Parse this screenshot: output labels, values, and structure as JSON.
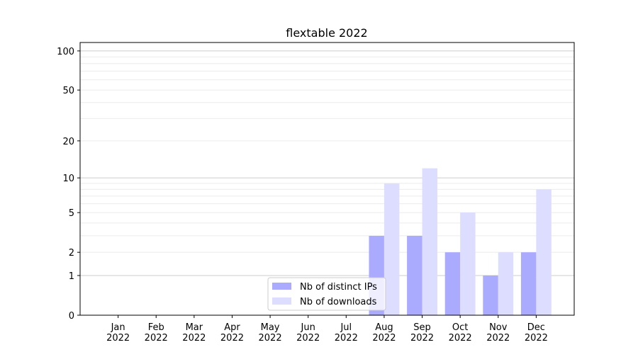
{
  "chart_data": {
    "type": "bar",
    "title": "flextable 2022",
    "xlabel": "",
    "ylabel": "",
    "y_scale": "log(1+y)",
    "ylim": [
      0,
      116
    ],
    "yticks": [
      0,
      1,
      2,
      5,
      10,
      20,
      50,
      100
    ],
    "ytick_labels": [
      "0",
      "1",
      "2",
      "5",
      "10",
      "20",
      "50",
      "100"
    ],
    "grid": true,
    "legend_position": "lower-center",
    "categories": [
      "Jan\n2022",
      "Feb\n2022",
      "Mar\n2022",
      "Apr\n2022",
      "May\n2022",
      "Jun\n2022",
      "Jul\n2022",
      "Aug\n2022",
      "Sep\n2022",
      "Oct\n2022",
      "Nov\n2022",
      "Dec\n2022"
    ],
    "series": [
      {
        "name": "Nb of distinct IPs",
        "color": "#aaaaff",
        "values": [
          0,
          0,
          0,
          0,
          0,
          0,
          0,
          3,
          3,
          2,
          1,
          2
        ]
      },
      {
        "name": "Nb of downloads",
        "color": "#ddddff",
        "values": [
          0,
          0,
          0,
          0,
          0,
          0,
          0,
          9,
          12,
          5,
          2,
          8
        ]
      }
    ]
  }
}
